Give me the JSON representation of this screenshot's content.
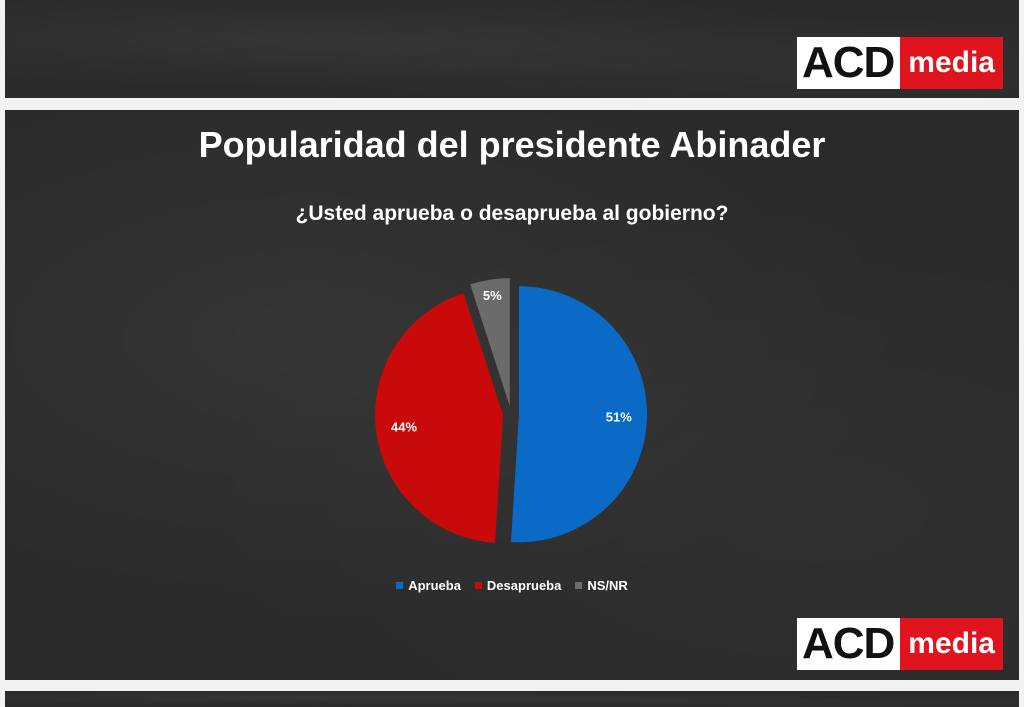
{
  "brand": {
    "acd": "ACD",
    "media": "media"
  },
  "chart_data": {
    "type": "pie",
    "title": "Popularidad del presidente Abinader",
    "subtitle": "¿Usted aprueba o desaprueba al gobierno?",
    "categories": [
      "Aprueba",
      "Desaprueba",
      "NS/NR"
    ],
    "values": [
      51,
      44,
      5
    ],
    "data_labels": [
      "51%",
      "44%",
      "5%"
    ],
    "colors": [
      "#0a6ac6",
      "#c80a0a",
      "#6b6b6b"
    ],
    "legend_position": "bottom"
  }
}
